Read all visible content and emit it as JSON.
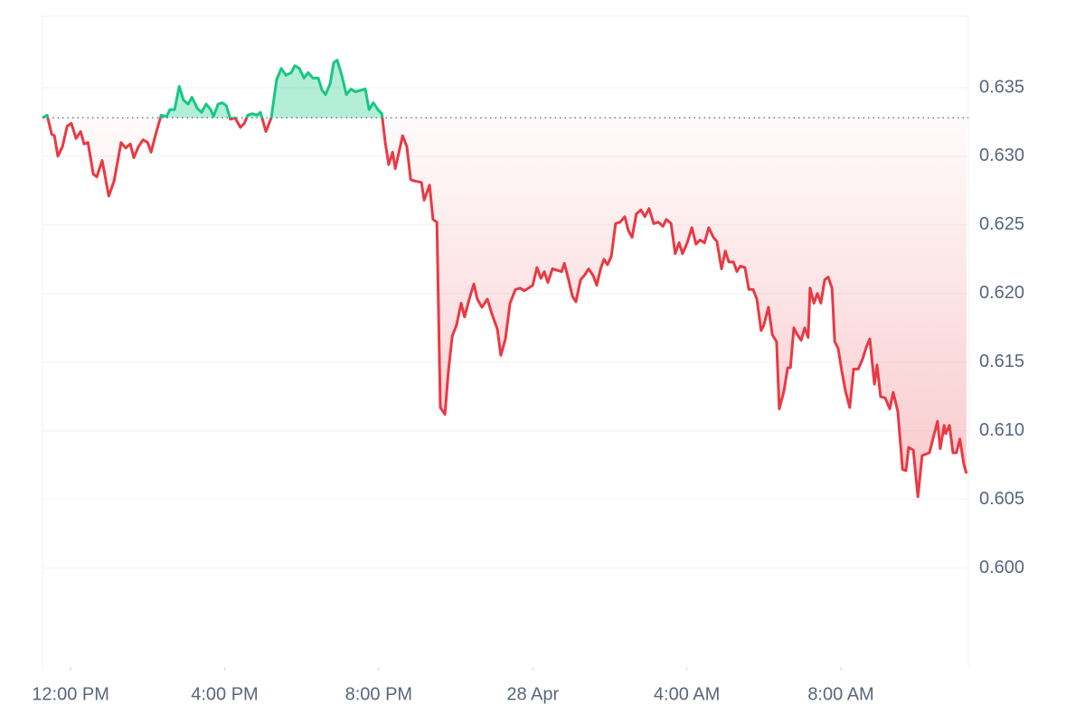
{
  "chart_data": {
    "type": "line",
    "x": [
      11.27,
      11.39,
      11.51,
      11.58,
      11.67,
      11.79,
      11.91,
      12.02,
      12.14,
      12.26,
      12.35,
      12.45,
      12.59,
      12.68,
      12.82,
      12.99,
      13.13,
      13.31,
      13.43,
      13.55,
      13.64,
      13.76,
      13.88,
      14.0,
      14.09,
      14.21,
      14.35,
      14.49,
      14.58,
      14.7,
      14.82,
      14.93,
      15.05,
      15.15,
      15.29,
      15.4,
      15.52,
      15.64,
      15.71,
      15.83,
      15.94,
      16.04,
      16.15,
      16.27,
      16.41,
      16.51,
      16.6,
      16.72,
      16.84,
      16.93,
      17.07,
      17.21,
      17.35,
      17.47,
      17.59,
      17.73,
      17.82,
      17.94,
      18.06,
      18.17,
      18.29,
      18.43,
      18.53,
      18.62,
      18.74,
      18.83,
      18.92,
      19.04,
      19.16,
      19.28,
      19.39,
      19.65,
      19.75,
      19.86,
      19.98,
      20.08,
      20.17,
      20.26,
      20.36,
      20.43,
      20.54,
      20.62,
      20.73,
      20.83,
      20.94,
      21.11,
      21.18,
      21.32,
      21.41,
      21.51,
      21.6,
      21.72,
      21.81,
      21.91,
      22.02,
      22.14,
      22.23,
      22.35,
      22.47,
      22.56,
      22.68,
      22.82,
      22.94,
      23.08,
      23.17,
      23.29,
      23.41,
      23.55,
      23.67,
      23.78,
      24.0,
      24.11,
      24.21,
      24.3,
      24.39,
      24.51,
      24.75,
      24.82,
      24.93,
      25.03,
      25.12,
      25.24,
      25.36,
      25.45,
      25.57,
      25.66,
      25.76,
      25.85,
      25.94,
      26.04,
      26.15,
      26.27,
      26.39,
      26.48,
      26.58,
      26.69,
      26.81,
      26.91,
      27.02,
      27.14,
      27.26,
      27.38,
      27.47,
      27.59,
      27.7,
      27.8,
      27.89,
      28.01,
      28.13,
      28.24,
      28.34,
      28.46,
      28.57,
      28.69,
      28.78,
      28.9,
      29.0,
      29.09,
      29.21,
      29.3,
      29.39,
      29.51,
      29.61,
      29.72,
      29.82,
      29.93,
      30.0,
      30.12,
      30.22,
      30.33,
      30.4,
      30.52,
      30.62,
      30.69,
      30.78,
      30.87,
      30.97,
      31.06,
      31.15,
      31.2,
      31.3,
      31.39,
      31.48,
      31.58,
      31.67,
      31.77,
      31.84,
      31.93,
      32.02,
      32.12,
      32.23,
      32.33,
      32.45,
      32.56,
      32.66,
      32.75,
      32.87,
      32.94,
      33.03,
      33.15,
      33.27,
      33.36,
      33.48,
      33.6,
      33.69,
      33.76,
      33.88,
      34.0,
      34.11,
      34.3,
      34.39,
      34.51,
      34.58,
      34.68,
      34.72,
      34.82,
      34.91,
      35.0,
      35.09,
      35.19,
      35.26
    ],
    "values": [
      0.6328,
      0.633,
      0.6316,
      0.6315,
      0.63,
      0.6307,
      0.6322,
      0.6324,
      0.6313,
      0.6318,
      0.6309,
      0.631,
      0.6287,
      0.6285,
      0.6297,
      0.6271,
      0.6282,
      0.631,
      0.6306,
      0.6309,
      0.6299,
      0.6307,
      0.6312,
      0.631,
      0.6303,
      0.6316,
      0.633,
      0.6329,
      0.6334,
      0.6334,
      0.6351,
      0.6341,
      0.6338,
      0.6343,
      0.6335,
      0.6332,
      0.6338,
      0.6334,
      0.6329,
      0.6338,
      0.6339,
      0.6337,
      0.6327,
      0.6328,
      0.6321,
      0.6324,
      0.633,
      0.6331,
      0.633,
      0.6332,
      0.6318,
      0.6328,
      0.6356,
      0.6364,
      0.6359,
      0.6361,
      0.6366,
      0.6364,
      0.6357,
      0.6361,
      0.6357,
      0.6357,
      0.6348,
      0.6345,
      0.6353,
      0.6368,
      0.637,
      0.6359,
      0.6345,
      0.6349,
      0.6347,
      0.6349,
      0.6334,
      0.6339,
      0.6334,
      0.6331,
      0.631,
      0.6294,
      0.6303,
      0.6291,
      0.6305,
      0.6315,
      0.6307,
      0.6283,
      0.6282,
      0.6281,
      0.6268,
      0.6279,
      0.6254,
      0.6252,
      0.6117,
      0.6112,
      0.6144,
      0.6169,
      0.6177,
      0.6193,
      0.6183,
      0.6196,
      0.6207,
      0.6196,
      0.619,
      0.6196,
      0.6185,
      0.6174,
      0.6155,
      0.6167,
      0.6193,
      0.6203,
      0.6204,
      0.6202,
      0.6206,
      0.6219,
      0.6211,
      0.6216,
      0.6208,
      0.6218,
      0.6216,
      0.6222,
      0.621,
      0.6198,
      0.6194,
      0.621,
      0.6214,
      0.6218,
      0.6213,
      0.6206,
      0.6218,
      0.6225,
      0.6221,
      0.6227,
      0.6251,
      0.6252,
      0.6256,
      0.6246,
      0.6241,
      0.6258,
      0.6261,
      0.6256,
      0.6262,
      0.6251,
      0.6252,
      0.6249,
      0.6254,
      0.6251,
      0.6229,
      0.6237,
      0.6229,
      0.6237,
      0.6248,
      0.6236,
      0.6239,
      0.6237,
      0.6248,
      0.6241,
      0.6238,
      0.6218,
      0.6231,
      0.6223,
      0.6223,
      0.6216,
      0.622,
      0.6219,
      0.6203,
      0.6203,
      0.6196,
      0.6173,
      0.6177,
      0.619,
      0.617,
      0.6165,
      0.6116,
      0.6129,
      0.6146,
      0.6146,
      0.6175,
      0.617,
      0.6166,
      0.6175,
      0.6168,
      0.6204,
      0.6193,
      0.62,
      0.6193,
      0.621,
      0.6212,
      0.6204,
      0.6165,
      0.616,
      0.6144,
      0.6129,
      0.6117,
      0.6145,
      0.6145,
      0.6152,
      0.6161,
      0.6167,
      0.6134,
      0.6148,
      0.6125,
      0.6124,
      0.6116,
      0.6128,
      0.6114,
      0.6072,
      0.6071,
      0.6088,
      0.6086,
      0.6052,
      0.6082,
      0.6084,
      0.6094,
      0.6107,
      0.6087,
      0.6104,
      0.6098,
      0.6104,
      0.6084,
      0.6084,
      0.6094,
      0.6076,
      0.6069
    ],
    "baseline": 0.6328,
    "colors": {
      "above": "#16c784",
      "below": "#ea3943"
    },
    "xlim": [
      11.27,
      35.31
    ],
    "xticks": [
      {
        "value": 12,
        "label": "12:00 PM"
      },
      {
        "value": 16,
        "label": "4:00 PM"
      },
      {
        "value": 20,
        "label": "8:00 PM"
      },
      {
        "value": 24,
        "label": "28 Apr"
      },
      {
        "value": 28,
        "label": "4:00 AM"
      },
      {
        "value": 32,
        "label": "8:00 AM"
      }
    ],
    "ylim": [
      0.5928,
      0.6402
    ],
    "yticks": [
      {
        "value": 0.6,
        "label": "0.600"
      },
      0.605,
      {
        "value": 0.61,
        "label": "0.610"
      },
      0.615,
      {
        "value": 0.62,
        "label": "0.620"
      },
      0.625,
      {
        "value": 0.63,
        "label": "0.630"
      },
      0.635
    ],
    "grid": true
  }
}
